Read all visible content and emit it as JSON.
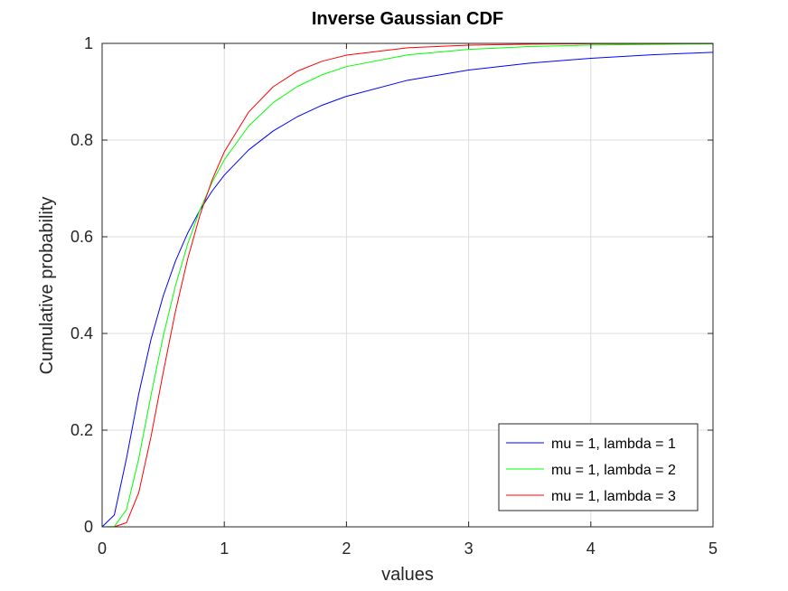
{
  "chart_data": {
    "type": "line",
    "title": "Inverse Gaussian CDF",
    "xlabel": "values",
    "ylabel": "Cumulative probability",
    "xlim": [
      0,
      5
    ],
    "ylim": [
      0,
      1
    ],
    "xticks": [
      "0",
      "1",
      "2",
      "3",
      "4",
      "5"
    ],
    "yticks": [
      "0",
      "0.2",
      "0.4",
      "0.6",
      "0.8",
      "1"
    ],
    "grid": true,
    "legend_position": "bottom-right",
    "x": [
      0,
      0.1,
      0.2,
      0.3,
      0.4,
      0.5,
      0.6,
      0.7,
      0.8,
      0.9,
      1.0,
      1.2,
      1.4,
      1.6,
      1.8,
      2.0,
      2.5,
      3.0,
      3.5,
      4.0,
      4.5,
      5.0
    ],
    "series": [
      {
        "name": "mu = 1, lambda = 1",
        "color": "#0000ff",
        "values": [
          0,
          0.0246,
          0.1422,
          0.2752,
          0.3877,
          0.4776,
          0.5494,
          0.6074,
          0.6549,
          0.6944,
          0.7275,
          0.7798,
          0.8188,
          0.8486,
          0.872,
          0.8905,
          0.9237,
          0.9449,
          0.9592,
          0.9691,
          0.9763,
          0.9816
        ]
      },
      {
        "name": "mu = 1, lambda = 2",
        "color": "#00ff00",
        "values": [
          0,
          0.0006,
          0.0357,
          0.1413,
          0.2719,
          0.3942,
          0.4986,
          0.5849,
          0.6553,
          0.7125,
          0.7592,
          0.8292,
          0.8774,
          0.9112,
          0.935,
          0.952,
          0.9761,
          0.9877,
          0.9934,
          0.9964,
          0.998,
          0.9988
        ]
      },
      {
        "name": "mu = 1, lambda = 3",
        "color": "#ff0000",
        "values": [
          0,
          0.0,
          0.0087,
          0.071,
          0.1863,
          0.3192,
          0.4454,
          0.5539,
          0.6442,
          0.7173,
          0.7756,
          0.8581,
          0.9103,
          0.9428,
          0.963,
          0.9757,
          0.991,
          0.9962,
          0.9983,
          0.9992,
          0.9996,
          0.9998
        ]
      }
    ]
  }
}
